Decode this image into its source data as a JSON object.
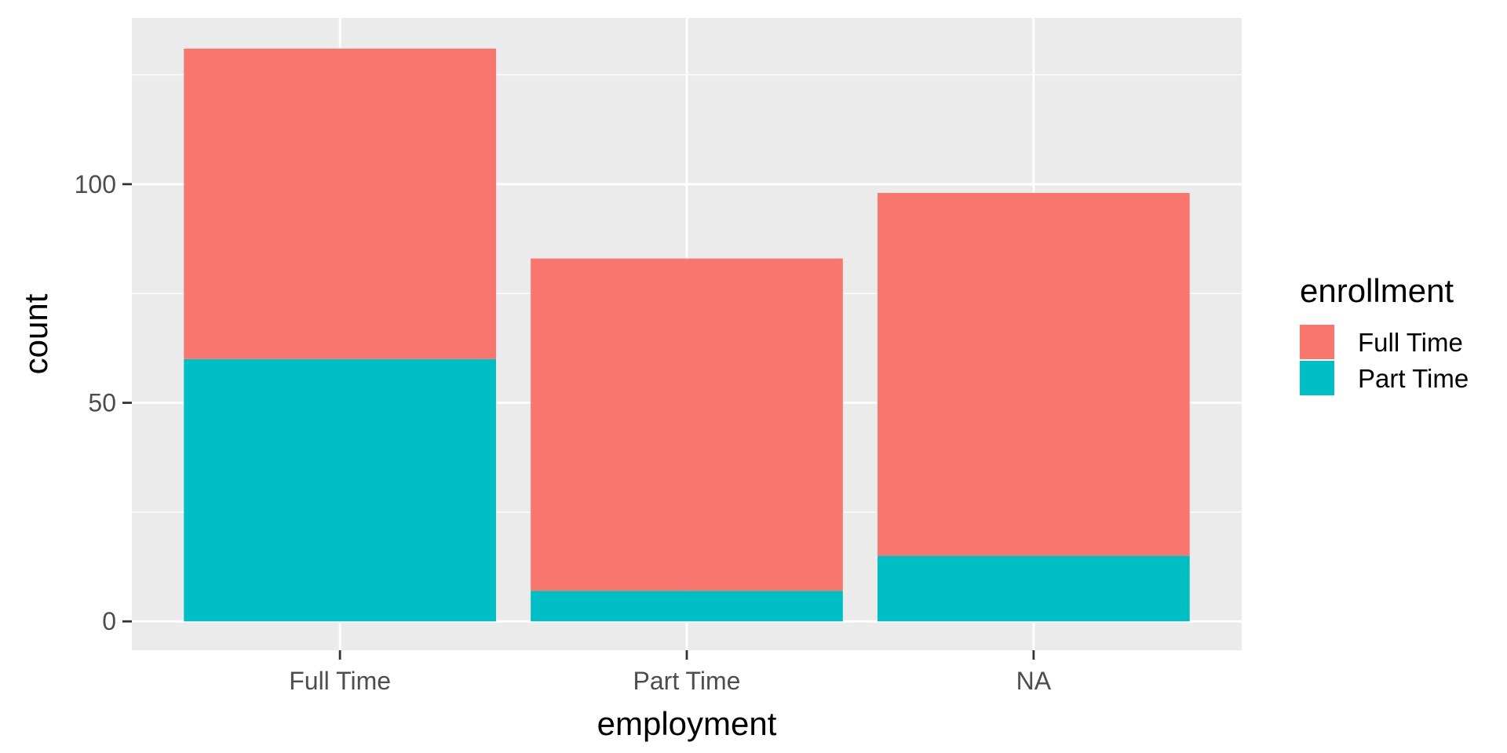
{
  "chart_data": {
    "type": "bar",
    "stacked": true,
    "categories": [
      "Full Time",
      "Part Time",
      "NA"
    ],
    "series": [
      {
        "name": "Full Time",
        "color": "#F8766D",
        "values": [
          71,
          76,
          83
        ]
      },
      {
        "name": "Part Time",
        "color": "#00BFC4",
        "values": [
          60,
          7,
          15
        ]
      }
    ],
    "xlabel": "employment",
    "ylabel": "count",
    "y_ticks": [
      0,
      50,
      100
    ],
    "ylim": [
      -6.6,
      138
    ],
    "grid": true,
    "legend": {
      "title": "enrollment",
      "placement": "right"
    },
    "colors": {
      "panel": "#EBEBEB",
      "grid": "#FFFFFF"
    }
  }
}
